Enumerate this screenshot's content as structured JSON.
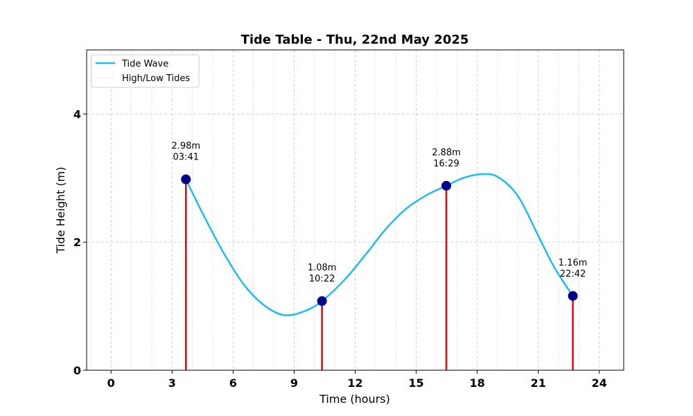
{
  "chart_data": {
    "type": "line",
    "title": "Tide Table - Thu, 22nd May 2025",
    "xlabel": "Time (hours)",
    "ylabel": "Tide Height (m)",
    "xlim": [
      -1.2,
      25.2
    ],
    "ylim": [
      0,
      5
    ],
    "xticks": [
      0,
      3,
      6,
      9,
      12,
      15,
      18,
      21,
      24
    ],
    "yticks": [
      0,
      2,
      4
    ],
    "minor_x_grid_step": 1,
    "grid": true,
    "legend": {
      "placement": "top-left",
      "entries": [
        "Tide Wave",
        "High/Low Tides"
      ]
    },
    "series": [
      {
        "name": "Tide Wave",
        "x": [
          3.68,
          4.5,
          5.5,
          6.5,
          7.5,
          8.5,
          9.5,
          10.37,
          11.5,
          12.5,
          13.5,
          14.5,
          15.5,
          16.48,
          17.0,
          17.5,
          18.2,
          19.0,
          20.0,
          21.0,
          21.8,
          22.7
        ],
        "y": [
          2.98,
          2.45,
          1.85,
          1.35,
          1.02,
          0.86,
          0.92,
          1.08,
          1.42,
          1.8,
          2.2,
          2.52,
          2.73,
          2.88,
          2.96,
          3.02,
          3.06,
          3.02,
          2.72,
          2.1,
          1.6,
          1.16
        ],
        "color": "#1ABCF3"
      }
    ],
    "tides": [
      {
        "time": 3.68,
        "height": 2.98,
        "label_height": "2.98m",
        "label_time": "03:41"
      },
      {
        "time": 10.37,
        "height": 1.08,
        "label_height": "1.08m",
        "label_time": "10:22"
      },
      {
        "time": 16.48,
        "height": 2.88,
        "label_height": "2.88m",
        "label_time": "16:29"
      },
      {
        "time": 22.7,
        "height": 1.16,
        "label_height": "1.16m",
        "label_time": "22:42"
      }
    ],
    "colors": {
      "wave": "#1ABCF3",
      "marker": "#00008B",
      "stem": "#EE0000",
      "grid": "#CCCCCC"
    }
  }
}
